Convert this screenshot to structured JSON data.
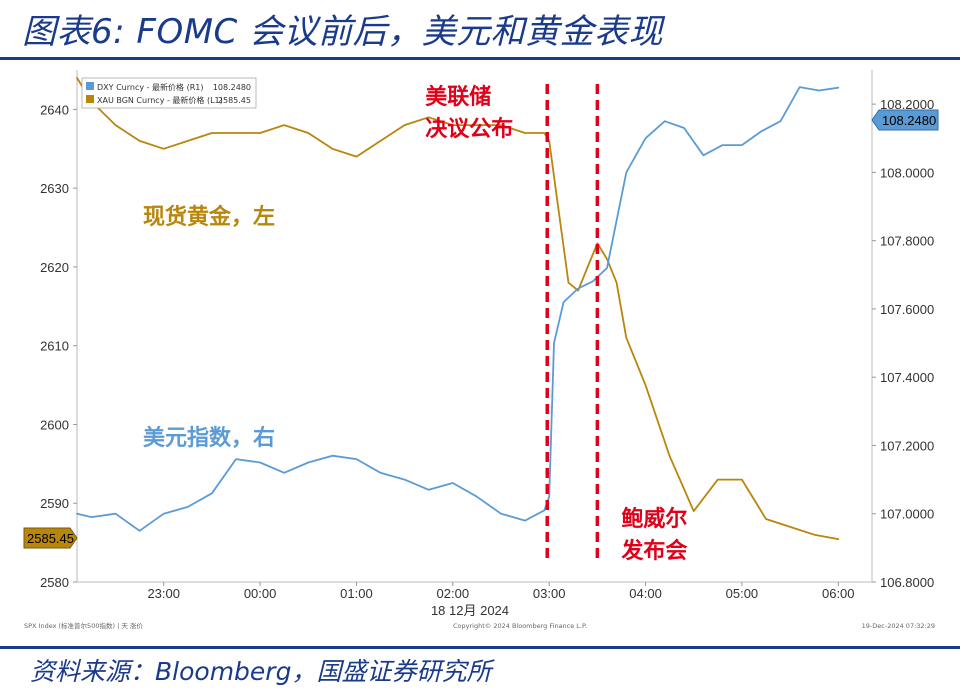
{
  "page": {
    "title": "图表6: FOMC 会议前后，美元和黄金表现",
    "source": "资料来源：Bloomberg，国盛证券研究所"
  },
  "colors": {
    "title": "#1a3a8c",
    "gold_series": "#b8860b",
    "dxy_series": "#5b9bd5",
    "event_lines": "#e0001a"
  },
  "chart_data": {
    "type": "line",
    "x_tick_labels": [
      "23:00",
      "00:00",
      "01:00",
      "02:00",
      "03:00",
      "04:00",
      "05:00",
      "06:00"
    ],
    "x_date_label": "18 12月 2024",
    "left_axis": {
      "ticks": [
        "2640",
        "2630",
        "2620",
        "2610",
        "2600",
        "2590",
        "2580"
      ],
      "ylim": [
        2580,
        2645
      ]
    },
    "right_axis": {
      "ticks": [
        "108.2000",
        "108.0000",
        "107.8000",
        "107.6000",
        "107.4000",
        "107.2000",
        "107.0000",
        "106.8000"
      ],
      "ylim": [
        106.8,
        108.3
      ]
    },
    "legend": {
      "position": "top-left",
      "entries": [
        {
          "label": "DXY Curncy - 最新价格 (R1)",
          "value": "108.2480",
          "color": "#5b9bd5"
        },
        {
          "label": "XAU BGN Curncy - 最新价格 (L1)",
          "value": "2585.45",
          "color": "#b8860b"
        }
      ]
    },
    "last_value_tags": {
      "left": "2585.45",
      "right": "108.2480"
    },
    "series": [
      {
        "name": "XAU BGN Curncy",
        "axis": "left",
        "color": "#b8860b",
        "x": [
          22.1,
          22.25,
          22.5,
          22.75,
          23.0,
          23.25,
          23.5,
          23.75,
          24.0,
          24.25,
          24.5,
          24.75,
          25.0,
          25.25,
          25.5,
          25.75,
          26.0,
          26.25,
          26.5,
          26.75,
          26.95,
          27.0,
          27.1,
          27.2,
          27.3,
          27.4,
          27.5,
          27.6,
          27.7,
          27.8,
          27.9,
          28.0,
          28.25,
          28.5,
          28.75,
          29.0,
          29.25,
          29.5,
          29.75,
          30.0
        ],
        "y": [
          2644,
          2641,
          2638,
          2636,
          2635,
          2636,
          2637,
          2637,
          2637,
          2638,
          2637,
          2635,
          2634,
          2636,
          2638,
          2639,
          2638,
          2638,
          2638,
          2637,
          2637,
          2636,
          2627,
          2618,
          2617,
          2620,
          2623,
          2621,
          2618,
          2611,
          2608,
          2605,
          2596,
          2589,
          2593,
          2593,
          2588,
          2587,
          2586,
          2585.45
        ]
      },
      {
        "name": "DXY Curncy",
        "axis": "right",
        "color": "#5b9bd5",
        "x": [
          22.1,
          22.25,
          22.5,
          22.75,
          23.0,
          23.25,
          23.5,
          23.75,
          24.0,
          24.25,
          24.5,
          24.75,
          25.0,
          25.25,
          25.5,
          25.75,
          26.0,
          26.25,
          26.5,
          26.75,
          26.95,
          27.0,
          27.05,
          27.15,
          27.3,
          27.45,
          27.6,
          27.8,
          28.0,
          28.2,
          28.4,
          28.6,
          28.8,
          29.0,
          29.2,
          29.4,
          29.6,
          29.8,
          30.0
        ],
        "y": [
          107.0,
          106.99,
          107.0,
          106.95,
          107.0,
          107.02,
          107.06,
          107.16,
          107.15,
          107.12,
          107.15,
          107.17,
          107.16,
          107.12,
          107.1,
          107.07,
          107.09,
          107.05,
          107.0,
          106.98,
          107.01,
          107.05,
          107.5,
          107.62,
          107.66,
          107.68,
          107.72,
          108.0,
          108.1,
          108.15,
          108.13,
          108.05,
          108.08,
          108.08,
          108.12,
          108.15,
          108.25,
          108.24,
          108.248
        ]
      }
    ],
    "event_lines": [
      {
        "x": 26.98,
        "label_lines": [
          "美联储",
          "决议公布"
        ]
      },
      {
        "x": 27.5,
        "label_lines": [
          "鲍威尔",
          "发布会"
        ]
      }
    ],
    "annotations": {
      "gold": "现货黄金，左",
      "dxy": "美元指数，右"
    },
    "footnotes": {
      "left": "SPX Index (标准普尔500指数) | 天  涨价",
      "center": "Copyright© 2024 Bloomberg Finance L.P.",
      "right": "19-Dec-2024 07:32:29"
    }
  }
}
